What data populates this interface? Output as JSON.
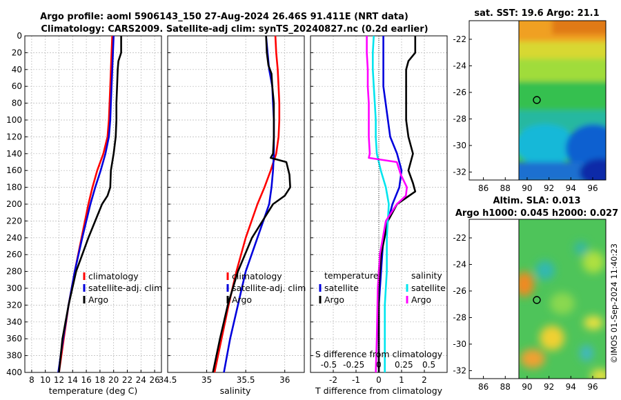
{
  "header": {
    "title_line1": "Argo profile: aoml 5906143_150 27-Aug-2024 26.46S 91.411E (NRT data)",
    "title_line2": "Climatology: CARS2009. Satellite-adj clim: synTS_20240827.nc (0.2d earlier)"
  },
  "colors": {
    "climatology": "#ff0000",
    "satellite": "#0000dd",
    "argo": "#000000",
    "satellite_s": "#00e5ee",
    "argo_s": "#ff00ff"
  },
  "chart_data": [
    {
      "type": "line",
      "name": "temperature-profile",
      "xlabel": "temperature (deg C)",
      "ylabel": "",
      "xlim": [
        7,
        27
      ],
      "ylim": [
        400,
        0
      ],
      "xticks": [
        8,
        10,
        12,
        14,
        16,
        18,
        20,
        22,
        24,
        26
      ],
      "yticks": [
        0,
        20,
        40,
        60,
        80,
        100,
        120,
        140,
        160,
        180,
        200,
        220,
        240,
        260,
        280,
        300,
        320,
        340,
        360,
        380,
        400
      ],
      "legend": [
        "climatology",
        "satellite-adj. clim",
        "Argo"
      ],
      "legend_placement": "right-middle",
      "series": [
        {
          "name": "climatology",
          "depth": [
            0,
            20,
            40,
            60,
            80,
            100,
            120,
            140,
            160,
            180,
            200,
            240,
            280,
            320,
            360,
            400
          ],
          "values": [
            19.8,
            19.7,
            19.6,
            19.5,
            19.4,
            19.3,
            19.1,
            18.5,
            17.6,
            16.9,
            16.3,
            15.3,
            14.3,
            13.4,
            12.7,
            12.0
          ]
        },
        {
          "name": "satellite-adj. clim",
          "depth": [
            0,
            20,
            40,
            60,
            80,
            100,
            120,
            140,
            160,
            180,
            200,
            240,
            280,
            320,
            360,
            400
          ],
          "values": [
            20.0,
            19.9,
            19.8,
            19.7,
            19.6,
            19.5,
            19.3,
            18.8,
            18.1,
            17.3,
            16.6,
            15.4,
            14.3,
            13.4,
            12.6,
            11.9
          ]
        },
        {
          "name": "Argo",
          "depth": [
            0,
            20,
            25,
            30,
            40,
            60,
            80,
            100,
            120,
            140,
            160,
            180,
            190,
            200,
            240,
            280,
            320,
            360,
            400
          ],
          "values": [
            21.1,
            21.1,
            20.9,
            20.7,
            20.6,
            20.5,
            20.4,
            20.4,
            20.3,
            20.0,
            19.6,
            19.5,
            19.1,
            18.3,
            16.3,
            14.5,
            13.4,
            12.5,
            12.0
          ]
        }
      ]
    },
    {
      "type": "line",
      "name": "salinity-profile",
      "xlabel": "salinity",
      "xlim": [
        34.5,
        36.25
      ],
      "ylim": [
        400,
        0
      ],
      "xticks": [
        34.5,
        35,
        35.5,
        36
      ],
      "xticklabels": [
        "34.5",
        "35",
        "35.5",
        "36"
      ],
      "legend": [
        "climatology",
        "satellite-adj. clim",
        "Argo"
      ],
      "legend_placement": "right-middle",
      "series": [
        {
          "name": "climatology",
          "depth": [
            0,
            20,
            40,
            60,
            80,
            100,
            120,
            140,
            160,
            180,
            200,
            240,
            280,
            320,
            360,
            400
          ],
          "values": [
            35.88,
            35.89,
            35.91,
            35.92,
            35.93,
            35.93,
            35.92,
            35.89,
            35.82,
            35.74,
            35.65,
            35.5,
            35.38,
            35.28,
            35.19,
            35.1
          ]
        },
        {
          "name": "satellite-adj. clim",
          "depth": [
            0,
            20,
            40,
            60,
            80,
            100,
            120,
            140,
            160,
            180,
            200,
            240,
            280,
            320,
            360,
            400
          ],
          "values": [
            35.76,
            35.78,
            35.8,
            35.84,
            35.85,
            35.86,
            35.86,
            35.86,
            35.85,
            35.83,
            35.8,
            35.65,
            35.5,
            35.4,
            35.3,
            35.22
          ]
        },
        {
          "name": "Argo",
          "depth": [
            0,
            20,
            35,
            45,
            60,
            80,
            100,
            120,
            140,
            145,
            150,
            165,
            180,
            190,
            200,
            240,
            280,
            320,
            360,
            400
          ],
          "values": [
            35.76,
            35.77,
            35.79,
            35.83,
            35.84,
            35.86,
            35.86,
            35.86,
            35.85,
            35.82,
            36.02,
            36.06,
            36.07,
            36.0,
            35.85,
            35.58,
            35.4,
            35.27,
            35.17,
            35.08
          ]
        }
      ]
    },
    {
      "type": "line",
      "name": "difference-profile",
      "xlabel": "T difference from climatology",
      "top_axis_label": "S difference from climatology",
      "xlim": [
        -3,
        3
      ],
      "ylim": [
        400,
        0
      ],
      "xticks": [
        -2,
        -1,
        0,
        1,
        2
      ],
      "s_ticks": [
        -0.5,
        -0.25,
        0,
        0.25,
        0.5
      ],
      "s_ticklabels": [
        "-0.5",
        "-0.25",
        "0",
        "0.25",
        "0.5"
      ],
      "legend_temperature": {
        "title": "temperature",
        "items": [
          "satellite",
          "Argo"
        ]
      },
      "legend_salinity": {
        "title": "salinity",
        "items": [
          "satellite",
          "Argo"
        ]
      },
      "series": [
        {
          "name": "temperature satellite",
          "depth": [
            0,
            20,
            40,
            60,
            80,
            100,
            120,
            140,
            160,
            180,
            200,
            240,
            280,
            320,
            360,
            400
          ],
          "values": [
            0.2,
            0.2,
            0.2,
            0.2,
            0.3,
            0.4,
            0.5,
            0.8,
            1.0,
            0.9,
            0.6,
            0.2,
            0.1,
            0.0,
            0.0,
            0.0
          ]
        },
        {
          "name": "temperature Argo",
          "depth": [
            0,
            20,
            30,
            40,
            60,
            80,
            100,
            120,
            140,
            160,
            175,
            185,
            200,
            220,
            260,
            300,
            360,
            400
          ],
          "values": [
            1.6,
            1.6,
            1.3,
            1.2,
            1.2,
            1.2,
            1.2,
            1.3,
            1.5,
            1.3,
            1.5,
            1.6,
            0.8,
            0.4,
            0.1,
            0.0,
            0.0,
            0.0
          ]
        },
        {
          "name": "salinity satellite",
          "depth": [
            0,
            20,
            40,
            60,
            80,
            100,
            120,
            140,
            160,
            180,
            200,
            240,
            280,
            320,
            360,
            400
          ],
          "values": [
            -0.05,
            -0.06,
            -0.06,
            -0.05,
            -0.04,
            -0.03,
            -0.03,
            -0.02,
            0.02,
            0.07,
            0.1,
            0.08,
            0.08,
            0.06,
            0.06,
            0.06
          ]
        },
        {
          "name": "salinity Argo",
          "depth": [
            0,
            10,
            20,
            40,
            60,
            80,
            100,
            120,
            140,
            145,
            150,
            165,
            180,
            190,
            200,
            220,
            260,
            300,
            360,
            400
          ],
          "values": [
            -0.12,
            -0.12,
            -0.12,
            -0.11,
            -0.11,
            -0.1,
            -0.1,
            -0.1,
            -0.09,
            -0.1,
            0.18,
            0.22,
            0.28,
            0.27,
            0.18,
            0.07,
            0.01,
            -0.01,
            -0.02,
            -0.03
          ]
        }
      ]
    }
  ],
  "sst_map": {
    "title": "sat. SST: 19.6 Argo: 21.1",
    "xticks": [
      86,
      88,
      90,
      92,
      94,
      96
    ],
    "yticks": [
      -22,
      -24,
      -26,
      -28,
      -30,
      -32
    ],
    "marker": {
      "lon": 91.411,
      "lat": -26.46
    }
  },
  "sla_map": {
    "title_line1": "Altim. SLA: 0.013",
    "title_line2": "Argo h1000: 0.045 h2000: 0.027",
    "xticks": [
      86,
      88,
      90,
      92,
      94,
      96
    ],
    "yticks": [
      -22,
      -24,
      -26,
      -28,
      -30,
      -32
    ],
    "marker": {
      "lon": 91.411,
      "lat": -26.46
    }
  },
  "credit": "©IMOS 01-Sep-2024 11:40:23"
}
